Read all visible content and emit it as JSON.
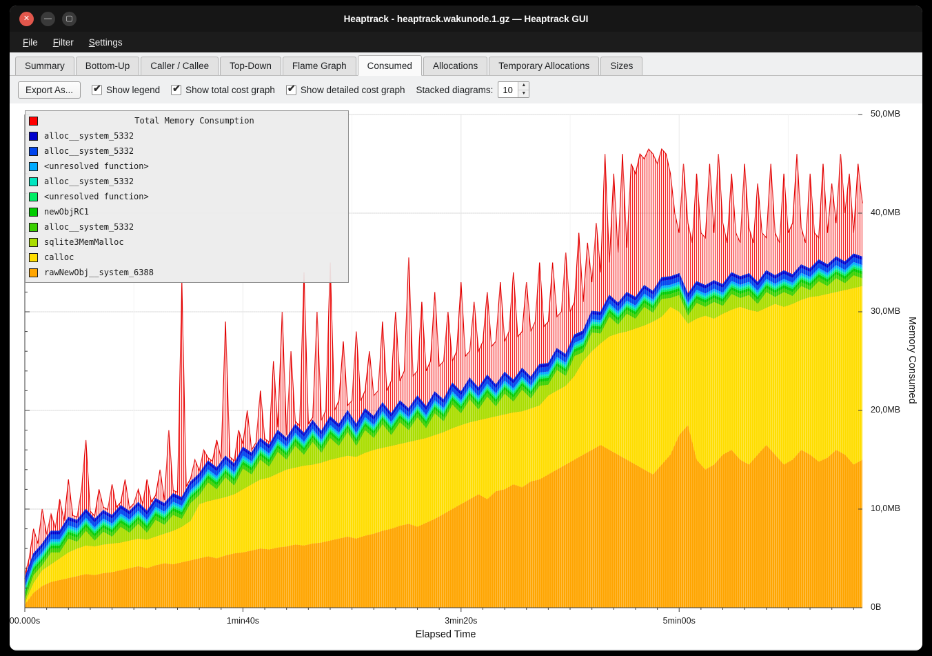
{
  "window": {
    "title": "Heaptrack - heaptrack.wakunode.1.gz — Heaptrack GUI",
    "controls": {
      "close": "✕",
      "minimize": "—",
      "maximize": "▢"
    }
  },
  "menubar": {
    "items": [
      "File",
      "Filter",
      "Settings"
    ]
  },
  "tabs": {
    "items": [
      "Summary",
      "Bottom-Up",
      "Caller / Callee",
      "Top-Down",
      "Flame Graph",
      "Consumed",
      "Allocations",
      "Temporary Allocations",
      "Sizes"
    ],
    "active_index": 5
  },
  "toolbar": {
    "export_label": "Export As...",
    "check_glyph": "✔",
    "checkboxes": [
      {
        "label": "Show legend",
        "checked": true
      },
      {
        "label": "Show total cost graph",
        "checked": true
      },
      {
        "label": "Show detailed cost graph",
        "checked": true
      }
    ],
    "stacked_label": "Stacked diagrams:",
    "stacked_value": "10",
    "spin_up": "▲",
    "spin_down": "▼"
  },
  "chart_data": {
    "type": "area",
    "title": "Total Memory Consumption",
    "xlabel": "Elapsed Time",
    "ylabel": "Memory Consumed",
    "unit": "MB",
    "xlim": [
      0,
      384
    ],
    "ylim": [
      0,
      50
    ],
    "x_ticks": [
      {
        "label": "00.000s",
        "t": 0
      },
      {
        "label": "1min40s",
        "t": 100
      },
      {
        "label": "3min20s",
        "t": 200
      },
      {
        "label": "5min00s",
        "t": 300
      }
    ],
    "y_ticks": [
      {
        "label": "0B",
        "mb": 0
      },
      {
        "label": "10,0MB",
        "mb": 10
      },
      {
        "label": "20,0MB",
        "mb": 20
      },
      {
        "label": "30,0MB",
        "mb": 30
      },
      {
        "label": "40,0MB",
        "mb": 40
      },
      {
        "label": "50,0MB",
        "mb": 50
      }
    ],
    "legend": [
      {
        "label": "Total Memory Consumption",
        "color": "#ff0000",
        "is_title": true
      },
      {
        "label": "alloc__system_5332",
        "color": "#0000cc"
      },
      {
        "label": "alloc__system_5332",
        "color": "#0044ee"
      },
      {
        "label": "<unresolved function>",
        "color": "#00aaff"
      },
      {
        "label": "alloc__system_5332",
        "color": "#00e5c0"
      },
      {
        "label": "<unresolved function>",
        "color": "#00ee66"
      },
      {
        "label": "newObjRC1",
        "color": "#00cc00"
      },
      {
        "label": "alloc__system_5332",
        "color": "#3ad000"
      },
      {
        "label": "sqlite3MemMalloc",
        "color": "#aadd00"
      },
      {
        "label": "calloc",
        "color": "#ffdd00"
      },
      {
        "label": "rawNewObj__system_6388",
        "color": "#ffa500"
      }
    ],
    "band_x": {
      "start": 0,
      "step": 4
    },
    "total_x": {
      "start": 0,
      "step": 2
    },
    "stacked_series": [
      {
        "name": "alloc__system_5332",
        "color": "#0000cc",
        "values": 0.3
      },
      {
        "name": "alloc__system_5332",
        "color": "#0044ee",
        "values": 0.5
      },
      {
        "name": "<unresolved function>",
        "color": "#00aaff",
        "values": 0.25
      },
      {
        "name": "alloc__system_5332",
        "color": "#00e5c0",
        "values": 0.2
      },
      {
        "name": "<unresolved function>",
        "color": "#00ee66",
        "values": 0.2
      },
      {
        "name": "newObjRC1",
        "color": "#00cc00",
        "values": 0.3
      },
      {
        "name": "alloc__system_5332",
        "color": "#3ad000",
        "values": 0.4
      },
      {
        "name": "sqlite3MemMalloc",
        "color": "#aadd00",
        "values": [
          0.3,
          0.8,
          0.5,
          1.2,
          0.6,
          1.4,
          0.7,
          1.5,
          0.6,
          1.3,
          0.7,
          1.6,
          0.8,
          1.5,
          0.7,
          1.7,
          0.9,
          1.6,
          0.8,
          1.8,
          0.9,
          1.9,
          1.0,
          2.0,
          0.9,
          2.1,
          1.0,
          2.0,
          1.1,
          2.2,
          1.0,
          2.2,
          1.1,
          2.3,
          1.0,
          2.2,
          1.2,
          2.4,
          1.1,
          2.3,
          1.2,
          2.4,
          1.1,
          2.2,
          1.2,
          2.3,
          1.0,
          2.2,
          1.1,
          2.4,
          1.2,
          2.3,
          1.1,
          2.2,
          1.0,
          2.1,
          1.1,
          2.2,
          1.0,
          2.0,
          1.1,
          2.1,
          1.0,
          2.0,
          0.9,
          1.9,
          1.0,
          2.0,
          0.9,
          1.8,
          1.0,
          1.9,
          0.9,
          1.8,
          0.9,
          1.7,
          0.8,
          1.6,
          0.9,
          1.7,
          0.8,
          1.6,
          0.9,
          1.5,
          0.8,
          1.6,
          0.7,
          1.5,
          0.8,
          1.4,
          0.7,
          1.5,
          0.8,
          1.4,
          0.7,
          1.3,
          0.8
        ]
      },
      {
        "name": "calloc",
        "color": "#ffdd00",
        "values": [
          0.2,
          1.0,
          1.6,
          1.8,
          2.2,
          2.6,
          2.8,
          2.9,
          2.9,
          2.9,
          2.9,
          2.8,
          2.8,
          2.8,
          2.9,
          2.9,
          3.0,
          3.4,
          3.6,
          4.0,
          5.5,
          5.6,
          6.0,
          5.9,
          6.0,
          6.4,
          6.7,
          7.0,
          7.3,
          7.5,
          7.8,
          7.8,
          8.1,
          8.0,
          8.1,
          8.2,
          8.2,
          8.2,
          8.3,
          8.4,
          8.5,
          8.4,
          8.4,
          8.3,
          8.3,
          8.8,
          8.6,
          8.5,
          8.3,
          8.2,
          8.0,
          7.8,
          7.5,
          8.2,
          7.6,
          7.6,
          7.3,
          7.7,
          7.4,
          7.5,
          8.0,
          8.0,
          8.0,
          8.5,
          9.5,
          10.0,
          10.3,
          11.5,
          12.3,
          13.0,
          13.8,
          14.6,
          15.5,
          15.0,
          15.0,
          12.5,
          10.3,
          14.3,
          15.6,
          14.8,
          14.3,
          14.2,
          15.5,
          15.7,
          14.5,
          13.9,
          15.3,
          16.0,
          15.8,
          15.2,
          16.0,
          16.8,
          16.6,
          16.0,
          16.7,
          17.9,
          17.6
        ]
      },
      {
        "name": "rawNewObj__system_6388",
        "color": "#ffa500",
        "values": [
          0.3,
          1.5,
          2.2,
          2.6,
          2.8,
          3.0,
          3.2,
          3.4,
          3.3,
          3.5,
          3.6,
          3.8,
          4.0,
          4.2,
          4.0,
          4.3,
          4.5,
          4.4,
          4.6,
          4.8,
          5.0,
          5.2,
          5.0,
          5.3,
          5.5,
          5.6,
          5.8,
          6.0,
          5.9,
          6.1,
          6.2,
          6.4,
          6.3,
          6.5,
          6.6,
          6.8,
          7.0,
          7.2,
          7.0,
          7.3,
          7.5,
          7.8,
          8.0,
          8.3,
          8.5,
          8.2,
          8.6,
          9.0,
          9.5,
          10.0,
          10.5,
          11.0,
          11.5,
          11.0,
          11.8,
          12.0,
          12.5,
          12.2,
          12.8,
          13.0,
          13.5,
          14.0,
          14.5,
          15.0,
          15.5,
          16.0,
          16.5,
          16.0,
          15.5,
          15.0,
          14.5,
          14.0,
          13.5,
          14.5,
          15.5,
          17.5,
          18.5,
          15.0,
          14.0,
          14.5,
          15.5,
          16.0,
          15.0,
          14.5,
          15.5,
          16.5,
          15.5,
          14.5,
          15.0,
          16.0,
          15.5,
          14.8,
          15.2,
          16.0,
          15.5,
          14.5,
          15.0
        ]
      }
    ],
    "total_series": {
      "name": "Total Memory Consumption",
      "color": "#ff0000",
      "values": [
        0.5,
        5,
        8,
        6.5,
        10,
        7,
        9.5,
        7,
        11,
        8,
        13,
        8.5,
        9,
        12,
        17,
        9,
        8.5,
        12,
        9,
        8.5,
        12.5,
        8,
        9,
        13,
        9,
        8.5,
        12,
        9,
        13,
        9,
        10,
        14,
        10,
        18,
        11,
        10.5,
        33,
        12,
        11,
        15,
        11,
        16,
        12,
        11.5,
        17,
        12,
        29,
        13,
        12.5,
        18,
        14,
        20,
        15,
        14,
        22,
        15,
        16,
        25,
        16,
        30,
        17,
        26,
        17.5,
        18,
        34,
        18,
        19,
        30,
        19,
        20,
        35,
        20,
        21,
        27,
        20.5,
        21,
        28,
        21,
        22,
        26,
        21.5,
        22,
        29,
        22,
        23,
        30,
        23,
        24,
        35.5,
        23.5,
        24,
        31,
        24,
        25,
        32,
        24.5,
        25,
        30,
        25,
        26,
        33,
        25.5,
        26,
        31,
        26,
        27,
        32,
        26.5,
        27,
        33,
        27,
        28,
        34,
        27.5,
        28,
        33,
        28,
        29,
        35,
        28.5,
        29,
        35,
        29.5,
        30,
        36,
        30,
        31,
        38,
        31,
        37,
        33,
        39,
        34,
        46,
        35,
        44,
        36,
        46,
        36.5,
        45,
        44,
        46,
        45.5,
        46.5,
        46,
        45,
        46.5,
        46,
        44,
        40,
        38,
        45,
        39,
        37,
        44,
        38,
        37.5,
        45,
        38,
        46,
        39,
        37,
        44,
        38,
        37,
        45,
        38.5,
        37,
        43,
        38,
        37.5,
        45,
        38,
        37,
        44,
        38,
        39,
        46,
        38.5,
        37,
        44,
        38,
        37.5,
        45,
        38,
        43,
        39,
        46,
        40,
        44,
        38,
        45,
        41
      ]
    }
  }
}
